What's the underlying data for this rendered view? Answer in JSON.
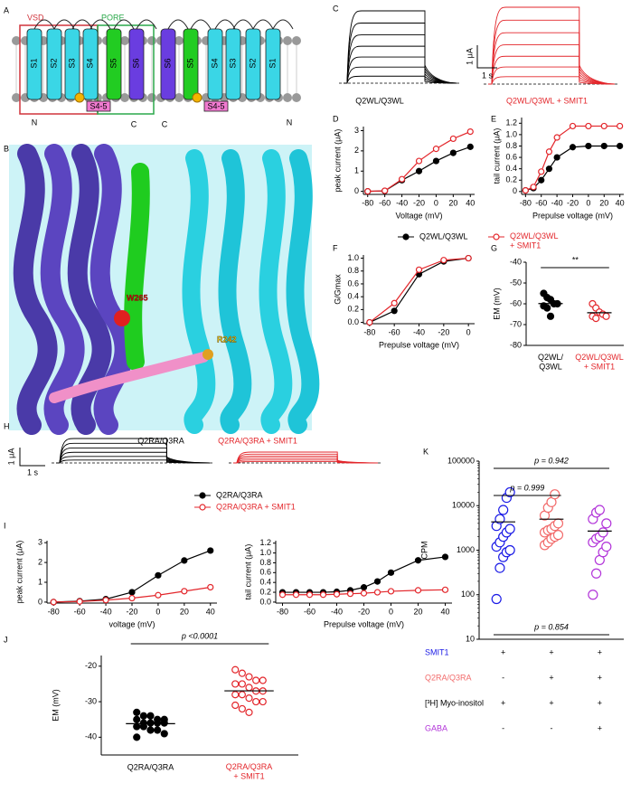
{
  "panel_labels": [
    "A",
    "B",
    "C",
    "D",
    "E",
    "F",
    "G",
    "H",
    "I",
    "J",
    "K"
  ],
  "diagram": {
    "regions": [
      "VSD",
      "PORE"
    ],
    "helices": [
      "S1",
      "S2",
      "S3",
      "S4",
      "S5",
      "S6",
      "S6",
      "S5",
      "S4",
      "S3",
      "S2",
      "S1"
    ],
    "linkers": [
      "S4-5",
      "S4-5"
    ],
    "termini": [
      "N",
      "C",
      "C",
      "N"
    ]
  },
  "structure": {
    "residues": [
      "W265",
      "R242"
    ]
  },
  "traces": [
    {
      "label": "Q2WL/Q3WL",
      "color": "#000000"
    },
    {
      "label": "Q2WL/Q3WL + SMIT1",
      "color": "#e3262b"
    },
    {
      "label": "Q2RA/Q3RA",
      "color": "#000000"
    },
    {
      "label": "Q2RA/Q3RA + SMIT1",
      "color": "#e3262b"
    }
  ],
  "scale_bars": {
    "current": "1 μA",
    "time": "1 s"
  },
  "chart_data": [
    {
      "type": "line",
      "ylabel": "peak current (μA)",
      "xlabel": "Voltage (mV)",
      "x": [
        -80,
        -60,
        -40,
        -20,
        0,
        20,
        40
      ],
      "xlim": [
        -85,
        45
      ],
      "xticks": [
        -80,
        -60,
        -40,
        -20,
        0,
        20,
        40
      ],
      "ylim": [
        -0.15,
        3.2
      ],
      "yticks": [
        0,
        1,
        2,
        3
      ],
      "legend": "bottom",
      "series": [
        {
          "name": "Q2WL/Q3WL",
          "color": "#000000",
          "marker": "filled",
          "values": [
            0,
            0.02,
            0.55,
            1.0,
            1.5,
            1.9,
            2.2
          ]
        },
        {
          "name": "Q2WL/Q3WL\n+ SMIT1",
          "color": "#e3262b",
          "marker": "open",
          "values": [
            0,
            0.03,
            0.6,
            1.5,
            2.1,
            2.6,
            2.95
          ]
        }
      ]
    },
    {
      "type": "line",
      "ylabel": "tail current (μA)",
      "xlabel": "Prepulse voltage (mV)",
      "x": [
        -80,
        -70,
        -60,
        -50,
        -40,
        -20,
        0,
        20,
        40
      ],
      "xlim": [
        -85,
        45
      ],
      "xticks": [
        -80,
        -60,
        -40,
        -20,
        0,
        20,
        40
      ],
      "ylim": [
        -0.05,
        1.3
      ],
      "yticks": [
        0,
        0.2,
        0.4,
        0.6,
        0.8,
        {
          "value": 1,
          "label": "1.0"
        },
        1.2
      ],
      "series": [
        {
          "color": "#000000",
          "marker": "filled",
          "values": [
            0.02,
            0.06,
            0.2,
            0.4,
            0.6,
            0.78,
            0.8,
            0.8,
            0.8
          ]
        },
        {
          "color": "#e3262b",
          "marker": "open",
          "values": [
            0.02,
            0.08,
            0.35,
            0.7,
            0.95,
            1.15,
            1.15,
            1.15,
            1.15
          ]
        }
      ]
    },
    {
      "type": "line",
      "ylabel": "G/Gmax",
      "xlabel": "Prepulse voltage (mV)",
      "x": [
        -80,
        -60,
        -40,
        -20,
        0
      ],
      "xlim": [
        -85,
        5
      ],
      "xticks": [
        -80,
        -60,
        -40,
        -20,
        0
      ],
      "ylim": [
        -0.02,
        1.05
      ],
      "yticks": [
        {
          "value": 0,
          "label": "0.0"
        },
        0.2,
        0.4,
        0.6,
        0.8,
        {
          "value": 1,
          "label": "1.0"
        }
      ],
      "series": [
        {
          "color": "#000000",
          "marker": "filled",
          "values": [
            0,
            0.18,
            0.75,
            0.95,
            1
          ]
        },
        {
          "color": "#e3262b",
          "marker": "open",
          "values": [
            0,
            0.3,
            0.82,
            0.97,
            1
          ]
        }
      ]
    },
    {
      "type": "strip",
      "ylabel": "EM (mV)",
      "categories": [
        "Q2WL/\nQ3WL",
        "Q2WL/Q3WL\n+ SMIT1"
      ],
      "ylim": [
        -80,
        -40
      ],
      "yticks": [
        -80,
        -70,
        -60,
        -50,
        -40
      ],
      "annotations": [
        {
          "text": "**"
        }
      ],
      "series": [
        {
          "color": "#000000",
          "marker": "filled",
          "values": [
            -55,
            -57,
            -58,
            -60,
            -60,
            -61,
            -62,
            -66
          ]
        },
        {
          "color": "#e3262b",
          "marker": "open",
          "values": [
            -60,
            -62,
            -64,
            -65,
            -66,
            -66,
            -67
          ]
        }
      ]
    },
    {
      "type": "line",
      "ylabel": "peak current (μA)",
      "xlabel": "voltage (mV)",
      "x": [
        -80,
        -60,
        -40,
        -20,
        0,
        20,
        40
      ],
      "xlim": [
        -85,
        45
      ],
      "xticks": [
        -80,
        -60,
        -40,
        -20,
        0,
        20,
        40
      ],
      "ylim": [
        -0.05,
        3.1
      ],
      "yticks": [
        0,
        1,
        2,
        3
      ],
      "legend": "top",
      "series": [
        {
          "name": "Q2RA/Q3RA",
          "color": "#000000",
          "marker": "filled",
          "values": [
            0,
            0.05,
            0.15,
            0.5,
            1.35,
            2.1,
            2.6
          ]
        },
        {
          "name": "Q2RA/Q3RA + SMIT1",
          "color": "#e3262b",
          "marker": "open",
          "values": [
            0,
            0.03,
            0.1,
            0.2,
            0.35,
            0.55,
            0.75
          ]
        }
      ]
    },
    {
      "type": "line",
      "ylabel": "tail current (μA)",
      "xlabel": "Prepulse voltage (mV)",
      "x": [
        -80,
        -70,
        -60,
        -50,
        -40,
        -30,
        -20,
        -10,
        0,
        20,
        40
      ],
      "xlim": [
        -85,
        45
      ],
      "xticks": [
        -80,
        -60,
        -40,
        -20,
        0,
        20,
        40
      ],
      "ylim": [
        -0.02,
        1.25
      ],
      "yticks": [
        {
          "value": 0,
          "label": "0.0"
        },
        0.2,
        0.4,
        0.6,
        0.8,
        {
          "value": 1,
          "label": "1.0"
        },
        1.2
      ],
      "series": [
        {
          "color": "#000000",
          "marker": "filled",
          "values": [
            0.2,
            0.2,
            0.2,
            0.2,
            0.21,
            0.24,
            0.3,
            0.42,
            0.6,
            0.85,
            0.92
          ]
        },
        {
          "color": "#e3262b",
          "marker": "open",
          "values": [
            0.15,
            0.15,
            0.15,
            0.15,
            0.16,
            0.17,
            0.18,
            0.2,
            0.22,
            0.24,
            0.25
          ]
        }
      ]
    },
    {
      "type": "strip",
      "ylabel": "EM (mV)",
      "categories": [
        "Q2RA/Q3RA",
        "Q2RA/Q3RA\n+ SMIT1"
      ],
      "ylim": [
        -45,
        -17
      ],
      "yticks": [
        -40,
        -30,
        -20
      ],
      "annotations": [
        {
          "text": "p <0.0001"
        }
      ],
      "series": [
        {
          "color": "#000000",
          "marker": "filled",
          "values": [
            -33,
            -34,
            -34,
            -35,
            -35,
            -35,
            -36,
            -36,
            -36,
            -36,
            -37,
            -37,
            -38,
            -38,
            -39,
            -40
          ]
        },
        {
          "color": "#e3262b",
          "marker": "open",
          "values": [
            -21,
            -22,
            -23,
            -24,
            -24,
            -25,
            -25,
            -26,
            -27,
            -27,
            -28,
            -28,
            -29,
            -30,
            -30,
            -31,
            -32,
            -33
          ]
        }
      ]
    },
    {
      "type": "strip",
      "ylabel": "CPM",
      "log_y": true,
      "ylim": [
        10,
        100000
      ],
      "yticks": [
        10,
        100,
        1000,
        10000,
        100000
      ],
      "annotations": [
        {
          "text": "p = 0.942"
        },
        {
          "text": "p = 0.999"
        },
        {
          "text": "p = 0.854"
        }
      ],
      "series": [
        {
          "color": "#1a1ae6",
          "marker": "open",
          "values": [
            80,
            400,
            700,
            900,
            1000,
            1200,
            1500,
            2000,
            2500,
            3000,
            3500,
            5000,
            8000,
            15000,
            20000
          ]
        },
        {
          "color": "#f26b6b",
          "marker": "open",
          "values": [
            1300,
            1500,
            1800,
            2000,
            2200,
            2500,
            2800,
            3000,
            3500,
            4000,
            6000,
            9000,
            12000,
            18000
          ]
        },
        {
          "color": "#b234d9",
          "marker": "open",
          "values": [
            100,
            300,
            600,
            900,
            1200,
            1500,
            1800,
            2000,
            2500,
            4000,
            5000,
            7000,
            8000
          ]
        }
      ]
    }
  ],
  "table": {
    "rows": [
      {
        "label": "SMIT1",
        "color": "#1a1ae6",
        "cells": [
          "+",
          "+",
          "+"
        ]
      },
      {
        "label": "Q2RA/Q3RA",
        "color": "#f26b6b",
        "cells": [
          "-",
          "+",
          "+"
        ]
      },
      {
        "label": "[³H] Myo-inositol",
        "color": "#000000",
        "cells": [
          "+",
          "+",
          "+"
        ]
      },
      {
        "label": "GABA",
        "color": "#b234d9",
        "cells": [
          "-",
          "-",
          "+"
        ]
      }
    ]
  }
}
